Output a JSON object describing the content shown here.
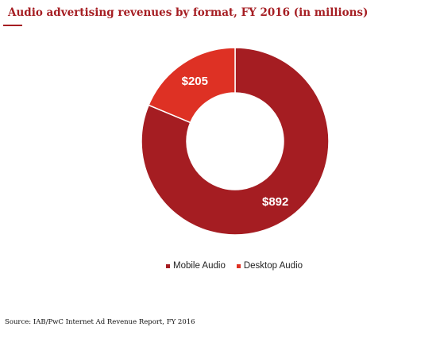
{
  "chart_data": {
    "type": "pie",
    "title": "Audio advertising revenues by format, FY 2016 (in millions)",
    "categories": [
      "Mobile Audio",
      "Desktop Audio"
    ],
    "values": [
      892,
      205
    ],
    "data_labels": [
      "$892",
      "$205"
    ],
    "colors": [
      "#a51d22",
      "#de3124"
    ],
    "donut": true,
    "legend_position": "bottom"
  },
  "source": "Source: IAB/PwC Internet Ad Revenue Report, FY 2016"
}
